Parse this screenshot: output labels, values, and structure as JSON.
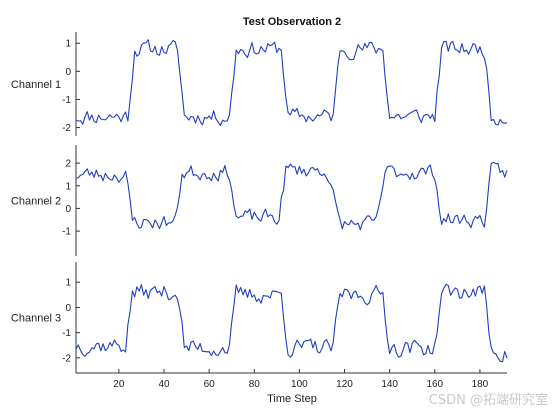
{
  "chart_data": {
    "type": "line",
    "title": "Test Observation 2",
    "xlabel": "Time Step",
    "xlim": [
      1,
      192
    ],
    "x_ticks": [
      20,
      40,
      60,
      80,
      100,
      120,
      140,
      160,
      180
    ],
    "line_color": "#1f3fbf",
    "grid": false,
    "panels": [
      {
        "ylabel": "Channel 1",
        "ylim": [
          -2.3,
          1.4
        ],
        "y_ticks": [
          -2,
          -1,
          0,
          1
        ],
        "segments": [
          [
            1,
            -1.6
          ],
          [
            24,
            -1.6
          ],
          [
            27,
            0.8
          ],
          [
            46,
            0.8
          ],
          [
            49,
            -1.6
          ],
          [
            69,
            -1.6
          ],
          [
            72,
            0.8
          ],
          [
            92,
            0.8
          ],
          [
            95,
            -1.6
          ],
          [
            115,
            -1.6
          ],
          [
            118,
            0.8
          ],
          [
            137,
            0.8
          ],
          [
            140,
            -1.6
          ],
          [
            160,
            -1.6
          ],
          [
            163,
            0.8
          ],
          [
            182,
            0.8
          ],
          [
            185,
            -1.6
          ],
          [
            192,
            -1.6
          ]
        ],
        "noise": 0.25,
        "seed": 11
      },
      {
        "ylabel": "Channel 2",
        "ylim": [
          -2.1,
          2.8
        ],
        "y_ticks": [
          -1,
          0,
          1,
          2
        ],
        "segments": [
          [
            1,
            1.5
          ],
          [
            23,
            1.5
          ],
          [
            26,
            -0.6
          ],
          [
            45,
            -0.6
          ],
          [
            48,
            1.6
          ],
          [
            69,
            1.6
          ],
          [
            72,
            -0.4
          ],
          [
            91,
            -0.4
          ],
          [
            94,
            1.7
          ],
          [
            112,
            1.7
          ],
          [
            118,
            -0.7
          ],
          [
            134,
            -0.7
          ],
          [
            138,
            1.6
          ],
          [
            160,
            1.6
          ],
          [
            163,
            -0.5
          ],
          [
            182,
            -0.5
          ],
          [
            185,
            1.6
          ],
          [
            192,
            1.6
          ]
        ],
        "noise": 0.3,
        "seed": 23
      },
      {
        "ylabel": "Channel 3",
        "ylim": [
          -2.6,
          1.8
        ],
        "y_ticks": [
          -2,
          -1,
          0,
          1
        ],
        "segments": [
          [
            1,
            -1.5
          ],
          [
            23,
            -1.5
          ],
          [
            26,
            0.6
          ],
          [
            46,
            0.6
          ],
          [
            49,
            -1.6
          ],
          [
            69,
            -1.6
          ],
          [
            72,
            0.5
          ],
          [
            92,
            0.5
          ],
          [
            95,
            -1.6
          ],
          [
            115,
            -1.6
          ],
          [
            118,
            0.5
          ],
          [
            137,
            0.5
          ],
          [
            140,
            -1.6
          ],
          [
            160,
            -1.6
          ],
          [
            163,
            0.6
          ],
          [
            182,
            0.6
          ],
          [
            185,
            -1.6
          ],
          [
            192,
            -1.9
          ]
        ],
        "noise": 0.3,
        "seed": 37
      }
    ]
  },
  "watermark": "CSDN @拓端研究室"
}
